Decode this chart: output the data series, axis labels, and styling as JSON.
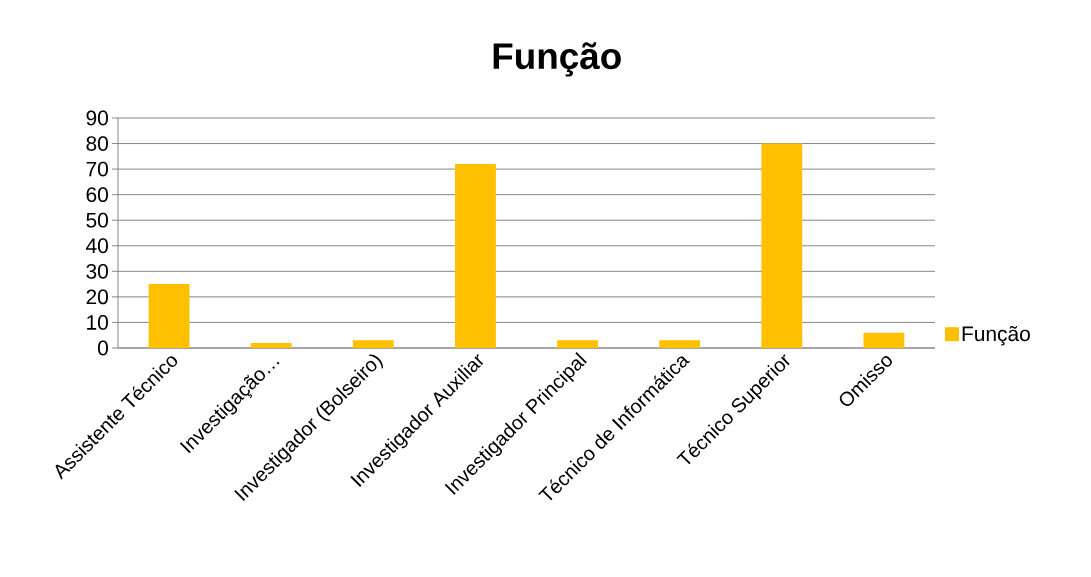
{
  "chart_data": {
    "type": "bar",
    "title": "Função",
    "categories": [
      "Assistente Técnico",
      "Investigação…",
      "Investigador (Bolseiro)",
      "Investigador Auxiliar",
      "Investigador Principal",
      "Técnico de Informática",
      "Técnico Superior",
      "Omisso"
    ],
    "series": [
      {
        "name": "Função",
        "color": "#ffc000",
        "values": [
          25,
          2,
          3,
          72,
          3,
          3,
          80,
          6
        ]
      }
    ],
    "ylim": [
      0,
      90
    ],
    "yticks": [
      0,
      10,
      20,
      30,
      40,
      50,
      60,
      70,
      80,
      90
    ],
    "grid": "y",
    "legend": "right"
  }
}
